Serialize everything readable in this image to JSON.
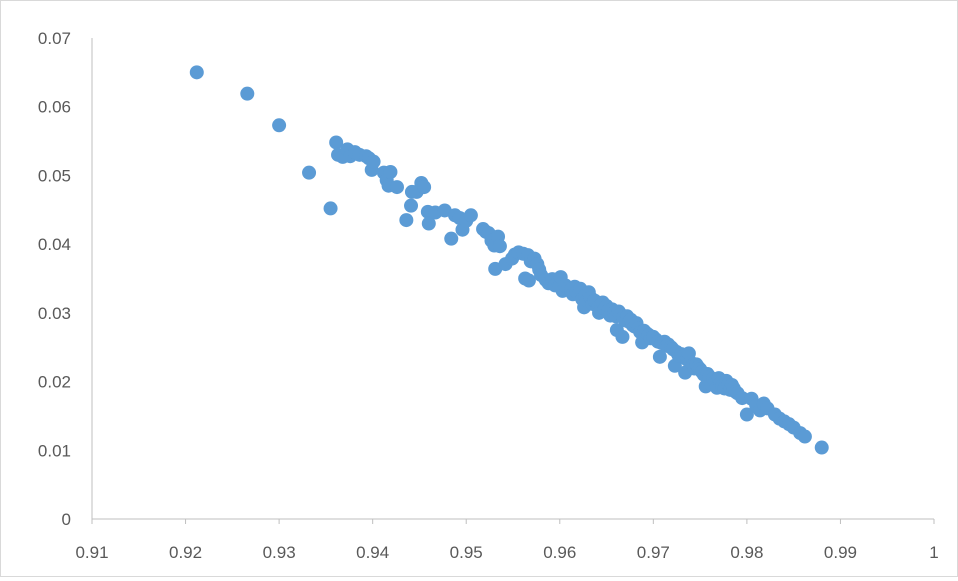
{
  "chart_data": {
    "type": "scatter",
    "title": "",
    "xlabel": "",
    "ylabel": "",
    "xlim": [
      0.91,
      1
    ],
    "ylim": [
      0,
      0.07
    ],
    "xticks": [
      "0.91",
      "0.92",
      "0.93",
      "0.94",
      "0.95",
      "0.96",
      "0.97",
      "0.98",
      "0.99",
      "1"
    ],
    "yticks": [
      "0",
      "0.01",
      "0.02",
      "0.03",
      "0.04",
      "0.05",
      "0.06",
      "0.07"
    ],
    "grid": false,
    "legend": "none",
    "marker_color": "#5b9bd5",
    "series": [
      {
        "points": [
          [
            0.9212,
            0.065
          ],
          [
            0.9266,
            0.0619
          ],
          [
            0.93,
            0.0573
          ],
          [
            0.9332,
            0.0504
          ],
          [
            0.9355,
            0.0452
          ],
          [
            0.9361,
            0.0548
          ],
          [
            0.9363,
            0.053
          ],
          [
            0.9368,
            0.0527
          ],
          [
            0.9373,
            0.0538
          ],
          [
            0.9376,
            0.0528
          ],
          [
            0.9381,
            0.0534
          ],
          [
            0.9386,
            0.053
          ],
          [
            0.9393,
            0.0528
          ],
          [
            0.9396,
            0.0525
          ],
          [
            0.9399,
            0.0508
          ],
          [
            0.9401,
            0.052
          ],
          [
            0.9412,
            0.0504
          ],
          [
            0.9415,
            0.0493
          ],
          [
            0.9417,
            0.0485
          ],
          [
            0.9419,
            0.0505
          ],
          [
            0.9426,
            0.0483
          ],
          [
            0.9436,
            0.0435
          ],
          [
            0.9441,
            0.0456
          ],
          [
            0.9442,
            0.0476
          ],
          [
            0.9447,
            0.0476
          ],
          [
            0.9452,
            0.0489
          ],
          [
            0.9455,
            0.0483
          ],
          [
            0.9459,
            0.0447
          ],
          [
            0.946,
            0.043
          ],
          [
            0.9467,
            0.0446
          ],
          [
            0.9477,
            0.0449
          ],
          [
            0.9484,
            0.0408
          ],
          [
            0.9488,
            0.0442
          ],
          [
            0.9493,
            0.0438
          ],
          [
            0.9496,
            0.0421
          ],
          [
            0.95,
            0.0434
          ],
          [
            0.9505,
            0.0442
          ],
          [
            0.9518,
            0.0422
          ],
          [
            0.9521,
            0.0418
          ],
          [
            0.9524,
            0.0416
          ],
          [
            0.9527,
            0.0405
          ],
          [
            0.953,
            0.0398
          ],
          [
            0.9531,
            0.0364
          ],
          [
            0.9534,
            0.0411
          ],
          [
            0.9536,
            0.0397
          ],
          [
            0.9542,
            0.0371
          ],
          [
            0.9549,
            0.0379
          ],
          [
            0.9552,
            0.0385
          ],
          [
            0.9556,
            0.0388
          ],
          [
            0.9561,
            0.0386
          ],
          [
            0.9563,
            0.035
          ],
          [
            0.9566,
            0.0384
          ],
          [
            0.9567,
            0.0347
          ],
          [
            0.9569,
            0.0375
          ],
          [
            0.9573,
            0.0379
          ],
          [
            0.9576,
            0.0371
          ],
          [
            0.9578,
            0.0363
          ],
          [
            0.958,
            0.0355
          ],
          [
            0.9585,
            0.0348
          ],
          [
            0.9588,
            0.0343
          ],
          [
            0.9592,
            0.0349
          ],
          [
            0.9595,
            0.034
          ],
          [
            0.9598,
            0.0345
          ],
          [
            0.96,
            0.034
          ],
          [
            0.9601,
            0.0352
          ],
          [
            0.9603,
            0.0332
          ],
          [
            0.9606,
            0.034
          ],
          [
            0.9609,
            0.0336
          ],
          [
            0.9612,
            0.0333
          ],
          [
            0.9614,
            0.0327
          ],
          [
            0.9616,
            0.0338
          ],
          [
            0.9618,
            0.033
          ],
          [
            0.962,
            0.0327
          ],
          [
            0.9622,
            0.0335
          ],
          [
            0.9624,
            0.032
          ],
          [
            0.9626,
            0.0308
          ],
          [
            0.9627,
            0.0325
          ],
          [
            0.9629,
            0.0318
          ],
          [
            0.9631,
            0.033
          ],
          [
            0.9633,
            0.0322
          ],
          [
            0.9635,
            0.0313
          ],
          [
            0.9637,
            0.0318
          ],
          [
            0.9639,
            0.0316
          ],
          [
            0.9641,
            0.0308
          ],
          [
            0.9642,
            0.03
          ],
          [
            0.9644,
            0.0312
          ],
          [
            0.9646,
            0.0315
          ],
          [
            0.9648,
            0.0306
          ],
          [
            0.965,
            0.031
          ],
          [
            0.9652,
            0.0303
          ],
          [
            0.9654,
            0.0296
          ],
          [
            0.9656,
            0.0305
          ],
          [
            0.9658,
            0.03
          ],
          [
            0.966,
            0.0295
          ],
          [
            0.9661,
            0.0275
          ],
          [
            0.9663,
            0.0302
          ],
          [
            0.9665,
            0.0298
          ],
          [
            0.9667,
            0.0265
          ],
          [
            0.9668,
            0.0293
          ],
          [
            0.967,
            0.0289
          ],
          [
            0.9672,
            0.0295
          ],
          [
            0.9674,
            0.0287
          ],
          [
            0.9676,
            0.029
          ],
          [
            0.9678,
            0.0282
          ],
          [
            0.968,
            0.028
          ],
          [
            0.9682,
            0.0285
          ],
          [
            0.9684,
            0.0277
          ],
          [
            0.9686,
            0.0272
          ],
          [
            0.9688,
            0.0257
          ],
          [
            0.969,
            0.0274
          ],
          [
            0.9693,
            0.027
          ],
          [
            0.9695,
            0.0268
          ],
          [
            0.9697,
            0.0263
          ],
          [
            0.97,
            0.0265
          ],
          [
            0.9703,
            0.0261
          ],
          [
            0.9705,
            0.0258
          ],
          [
            0.9707,
            0.0236
          ],
          [
            0.9709,
            0.0256
          ],
          [
            0.9712,
            0.0258
          ],
          [
            0.9714,
            0.0252
          ],
          [
            0.9716,
            0.0254
          ],
          [
            0.9719,
            0.025
          ],
          [
            0.9721,
            0.0247
          ],
          [
            0.9723,
            0.0223
          ],
          [
            0.9725,
            0.0243
          ],
          [
            0.9727,
            0.0238
          ],
          [
            0.973,
            0.024
          ],
          [
            0.9732,
            0.0236
          ],
          [
            0.9734,
            0.0213
          ],
          [
            0.9736,
            0.0232
          ],
          [
            0.9738,
            0.0241
          ],
          [
            0.974,
            0.0228
          ],
          [
            0.9742,
            0.0224
          ],
          [
            0.9744,
            0.0219
          ],
          [
            0.9746,
            0.0225
          ],
          [
            0.9748,
            0.0221
          ],
          [
            0.975,
            0.0218
          ],
          [
            0.9752,
            0.0214
          ],
          [
            0.9754,
            0.021
          ],
          [
            0.9756,
            0.0193
          ],
          [
            0.9758,
            0.0211
          ],
          [
            0.976,
            0.0207
          ],
          [
            0.9762,
            0.0196
          ],
          [
            0.9764,
            0.0204
          ],
          [
            0.9766,
            0.02
          ],
          [
            0.9768,
            0.0191
          ],
          [
            0.977,
            0.0205
          ],
          [
            0.9772,
            0.0198
          ],
          [
            0.9774,
            0.0194
          ],
          [
            0.9776,
            0.019
          ],
          [
            0.9778,
            0.0201
          ],
          [
            0.978,
            0.0196
          ],
          [
            0.9782,
            0.0188
          ],
          [
            0.9784,
            0.0195
          ],
          [
            0.9786,
            0.019
          ],
          [
            0.9788,
            0.0185
          ],
          [
            0.979,
            0.0183
          ],
          [
            0.9795,
            0.0176
          ],
          [
            0.98,
            0.0152
          ],
          [
            0.9805,
            0.0175
          ],
          [
            0.981,
            0.0165
          ],
          [
            0.9814,
            0.0158
          ],
          [
            0.9818,
            0.0168
          ],
          [
            0.9822,
            0.0161
          ],
          [
            0.983,
            0.0152
          ],
          [
            0.9835,
            0.0146
          ],
          [
            0.984,
            0.0142
          ],
          [
            0.9845,
            0.0138
          ],
          [
            0.985,
            0.0133
          ],
          [
            0.9857,
            0.0125
          ],
          [
            0.9862,
            0.012
          ],
          [
            0.988,
            0.0104
          ]
        ]
      }
    ]
  }
}
